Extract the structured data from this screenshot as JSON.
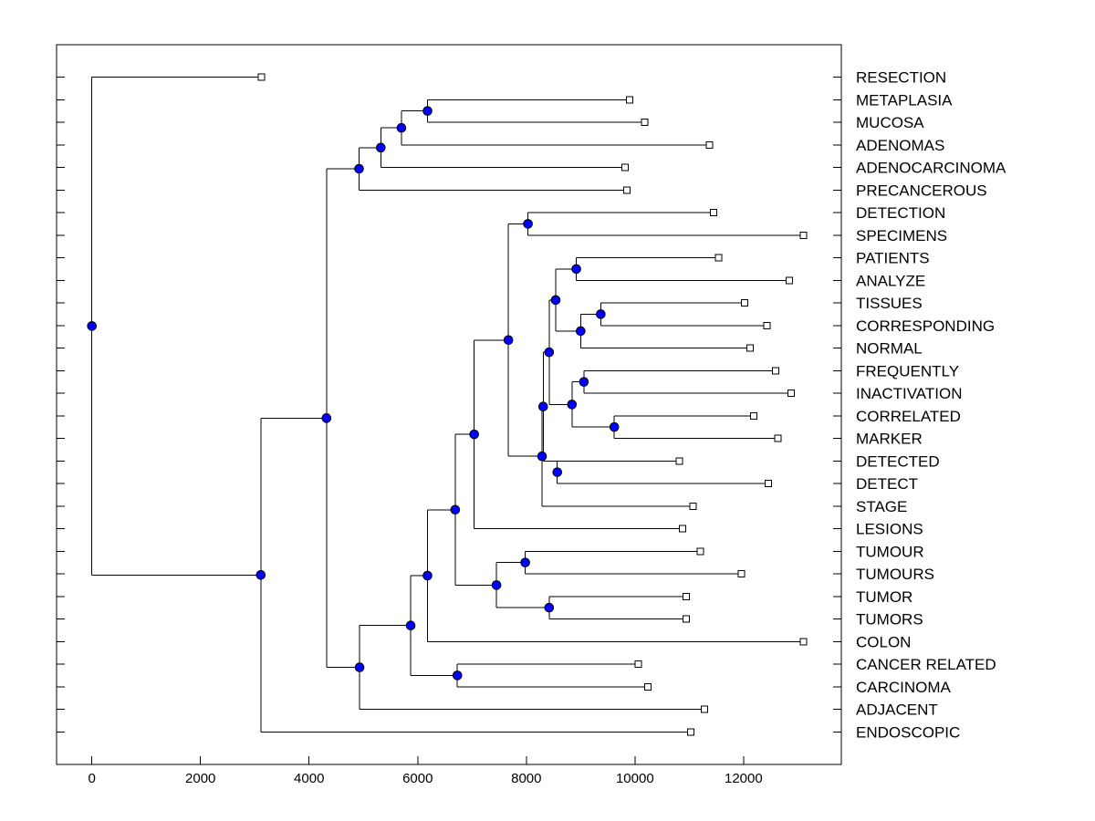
{
  "chart_data": {
    "type": "dendrogram",
    "title": "",
    "xlabel": "",
    "ylabel": "",
    "xlim": [
      -650,
      13800
    ],
    "x_ticks": [
      0,
      2000,
      4000,
      6000,
      8000,
      10000,
      12000
    ],
    "x_tick_labels": [
      "0",
      "2000",
      "4000",
      "6000",
      "8000",
      "10000",
      "12000"
    ],
    "grid": false,
    "node_color": "#0000ff",
    "leaves": [
      {
        "label": "RESECTION",
        "x": 3120
      },
      {
        "label": "METAPLASIA",
        "x": 9900
      },
      {
        "label": "MUCOSA",
        "x": 10180
      },
      {
        "label": "ADENOMAS",
        "x": 11370
      },
      {
        "label": "ADENOCARCINOMA",
        "x": 9820
      },
      {
        "label": "PRECANCEROUS",
        "x": 9850
      },
      {
        "label": "DETECTION",
        "x": 11450
      },
      {
        "label": "SPECIMENS",
        "x": 13100
      },
      {
        "label": "PATIENTS",
        "x": 11540
      },
      {
        "label": "ANALYZE",
        "x": 12840
      },
      {
        "label": "TISSUES",
        "x": 12020
      },
      {
        "label": "CORRESPONDING",
        "x": 12430
      },
      {
        "label": "NORMAL",
        "x": 12120
      },
      {
        "label": "FREQUENTLY",
        "x": 12590
      },
      {
        "label": "INACTIVATION",
        "x": 12880
      },
      {
        "label": "CORRELATED",
        "x": 12190
      },
      {
        "label": "MARKER",
        "x": 12630
      },
      {
        "label": "DETECTED",
        "x": 10820
      },
      {
        "label": "DETECT",
        "x": 12460
      },
      {
        "label": "STAGE",
        "x": 11070
      },
      {
        "label": "LESIONS",
        "x": 10880
      },
      {
        "label": "TUMOUR",
        "x": 11200
      },
      {
        "label": "TUMOURS",
        "x": 11960
      },
      {
        "label": "TUMOR",
        "x": 10940
      },
      {
        "label": "TUMORS",
        "x": 10940
      },
      {
        "label": "COLON",
        "x": 13100
      },
      {
        "label": "CANCER RELATED",
        "x": 10060
      },
      {
        "label": "CARCINOMA",
        "x": 10240
      },
      {
        "label": "ADJACENT",
        "x": 11280
      },
      {
        "label": "ENDOSCOPIC",
        "x": 11030
      }
    ],
    "nodes": [
      {
        "id": "n1",
        "x": 6180,
        "children": [
          "L1",
          "L2"
        ]
      },
      {
        "id": "n2",
        "x": 5700,
        "children": [
          "n1",
          "L3"
        ]
      },
      {
        "id": "n3",
        "x": 5320,
        "children": [
          "n2",
          "L4"
        ]
      },
      {
        "id": "n4",
        "x": 4920,
        "children": [
          "n3",
          "L5"
        ]
      },
      {
        "id": "n5",
        "x": 8030,
        "children": [
          "L6",
          "L7"
        ]
      },
      {
        "id": "n6",
        "x": 8920,
        "children": [
          "L8",
          "L9"
        ]
      },
      {
        "id": "n7",
        "x": 9370,
        "children": [
          "L10",
          "L11"
        ]
      },
      {
        "id": "n8",
        "x": 9000,
        "children": [
          "n7",
          "L12"
        ]
      },
      {
        "id": "n9",
        "x": 8540,
        "children": [
          "n6",
          "n8"
        ]
      },
      {
        "id": "n10",
        "x": 9060,
        "children": [
          "L13",
          "L14"
        ]
      },
      {
        "id": "n11",
        "x": 9620,
        "children": [
          "L15",
          "L16"
        ]
      },
      {
        "id": "n12",
        "x": 8840,
        "children": [
          "n10",
          "n11"
        ]
      },
      {
        "id": "n13",
        "x": 8420,
        "children": [
          "n9",
          "n12"
        ]
      },
      {
        "id": "n14",
        "x": 8310,
        "children": [
          "n13",
          "L17"
        ]
      },
      {
        "id": "n15",
        "x": 8570,
        "children": [
          "L17",
          "L18"
        ]
      },
      {
        "id": "n16",
        "x": 8290,
        "children": [
          "n14",
          "L19"
        ]
      },
      {
        "id": "n17",
        "x": 7670,
        "children": [
          "n5",
          "n16"
        ]
      },
      {
        "id": "n18",
        "x": 7040,
        "children": [
          "n17",
          "L20"
        ]
      },
      {
        "id": "n19",
        "x": 7980,
        "children": [
          "L21",
          "L22"
        ]
      },
      {
        "id": "n20",
        "x": 8420,
        "children": [
          "L23",
          "L24"
        ]
      },
      {
        "id": "n21",
        "x": 7450,
        "children": [
          "n19",
          "n20"
        ]
      },
      {
        "id": "n22",
        "x": 6690,
        "children": [
          "n18",
          "n21"
        ]
      },
      {
        "id": "n23",
        "x": 6180,
        "children": [
          "n22",
          "L25"
        ]
      },
      {
        "id": "n24",
        "x": 6730,
        "children": [
          "L26",
          "L27"
        ]
      },
      {
        "id": "n25",
        "x": 5870,
        "children": [
          "n23",
          "n24"
        ]
      },
      {
        "id": "n26",
        "x": 4930,
        "children": [
          "n25",
          "L28"
        ]
      },
      {
        "id": "n27",
        "x": 4320,
        "children": [
          "n4",
          "n26"
        ]
      },
      {
        "id": "n28",
        "x": 3110,
        "children": [
          "n27",
          "L29"
        ]
      },
      {
        "id": "n29",
        "x": 0,
        "children": [
          "L0",
          "n28"
        ]
      }
    ]
  }
}
